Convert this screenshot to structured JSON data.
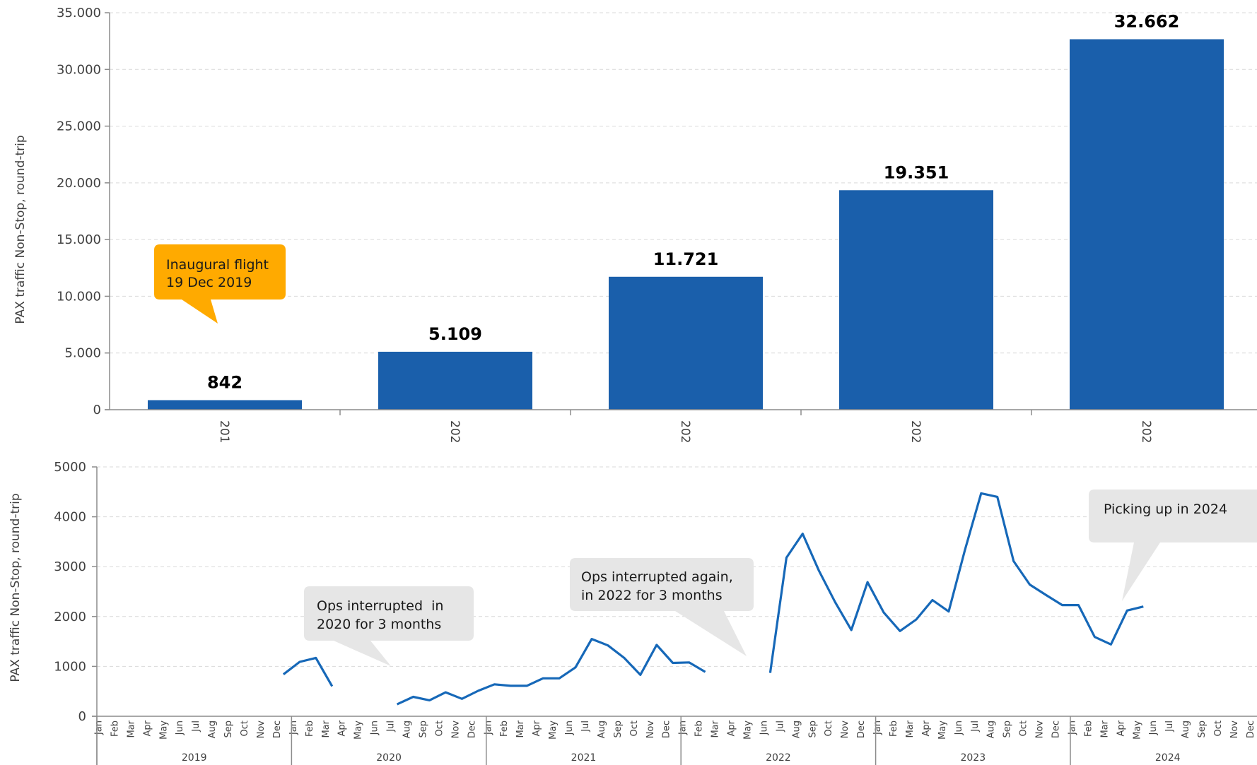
{
  "chart_data": [
    {
      "type": "bar",
      "ylabel": "PAX traffic Non-Stop, round-trip",
      "ylim": [
        0,
        35000
      ],
      "y_ticks": [
        "0",
        "5.000",
        "10.000",
        "15.000",
        "20.000",
        "25.000",
        "30.000",
        "35.000"
      ],
      "categories": [
        "201",
        "202",
        "202",
        "202",
        "202"
      ],
      "values": [
        842,
        5109,
        11721,
        19351,
        32662
      ],
      "value_labels": [
        "842",
        "5.109",
        "11.721",
        "19.351",
        "32.662"
      ],
      "grid": true,
      "color": "#1a5fab",
      "annotation": {
        "text": [
          "Inaugural flight",
          "19 Dec 2019"
        ],
        "color": "#ffaa00"
      }
    },
    {
      "type": "line",
      "ylabel": "PAX traffic Non-Stop, round-trip",
      "ylim": [
        0,
        5000
      ],
      "y_ticks": [
        "0",
        "1000",
        "2000",
        "3000",
        "4000",
        "5000"
      ],
      "months": [
        "Jan",
        "Feb",
        "Mar",
        "Apr",
        "May",
        "Jun",
        "Jul",
        "Aug",
        "Sep",
        "Oct",
        "Nov",
        "Dec"
      ],
      "years": [
        "2019",
        "2020",
        "2021",
        "2022",
        "2023",
        "2024"
      ],
      "grid": true,
      "color": "#1668b8",
      "values": [
        null,
        null,
        null,
        null,
        null,
        null,
        null,
        null,
        null,
        null,
        null,
        840,
        1090,
        1170,
        600,
        null,
        null,
        null,
        240,
        390,
        320,
        480,
        350,
        510,
        640,
        610,
        610,
        760,
        760,
        980,
        1550,
        1420,
        1170,
        830,
        1430,
        1070,
        1080,
        890,
        null,
        null,
        null,
        870,
        3180,
        3660,
        2920,
        2290,
        1730,
        2690,
        2080,
        1710,
        1940,
        2330,
        2100,
        3330,
        4470,
        4400,
        3110,
        2640,
        2430,
        2230,
        2230,
        1590,
        1440,
        2120,
        2200,
        null,
        null,
        null,
        null,
        null,
        null,
        null
      ],
      "annotations": [
        {
          "text": [
            "Ops interrupted  in",
            "2020 for 3 months"
          ]
        },
        {
          "text": [
            "Ops interrupted again,",
            "in 2022 for 3 months"
          ]
        },
        {
          "text": [
            "Picking up in 2024"
          ]
        }
      ],
      "callout_color": "#e6e6e6"
    }
  ]
}
